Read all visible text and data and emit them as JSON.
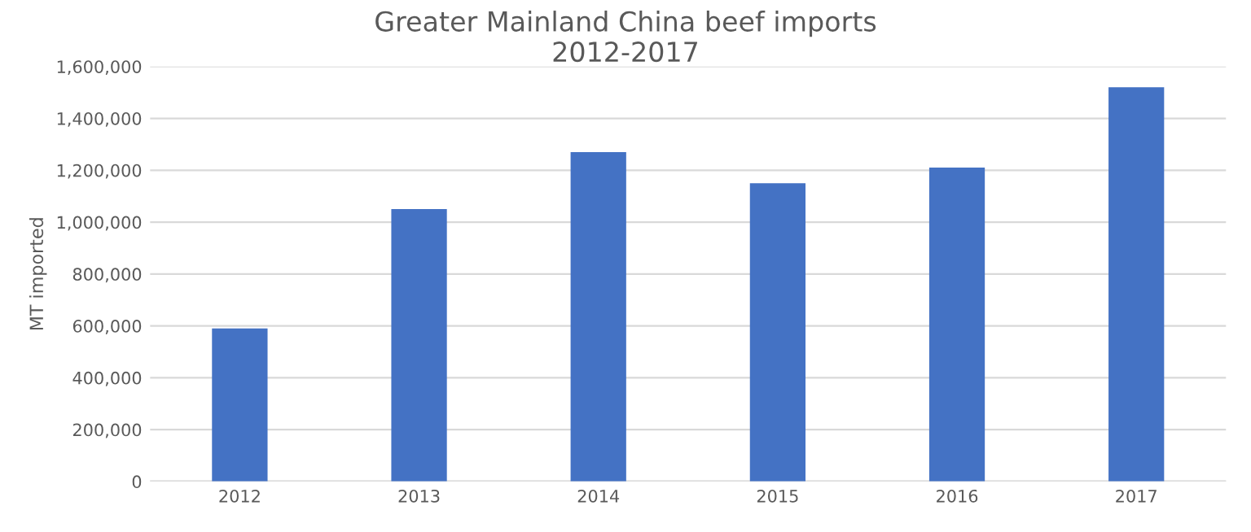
{
  "chart_data": {
    "type": "bar",
    "title": "Greater Mainland China beef imports\n2012-2017",
    "ylabel": "MT imported",
    "categories": [
      "2012",
      "2013",
      "2014",
      "2015",
      "2016",
      "2017"
    ],
    "values": [
      590000,
      1050000,
      1270000,
      1150000,
      1210000,
      1520000
    ],
    "color": "#4472c4",
    "ylim": [
      0,
      1600000
    ],
    "yticks": [
      {
        "value": 0,
        "label": "0"
      },
      {
        "value": 200000,
        "label": "200,000"
      },
      {
        "value": 400000,
        "label": "400,000"
      },
      {
        "value": 600000,
        "label": "600,000"
      },
      {
        "value": 800000,
        "label": "800,000"
      },
      {
        "value": 1000000,
        "label": "1,000,000"
      },
      {
        "value": 1200000,
        "label": "1,200,000"
      },
      {
        "value": 1400000,
        "label": "1,400,000"
      },
      {
        "value": 1600000,
        "label": "1,600,000"
      }
    ],
    "grid": "y",
    "legend": false
  }
}
